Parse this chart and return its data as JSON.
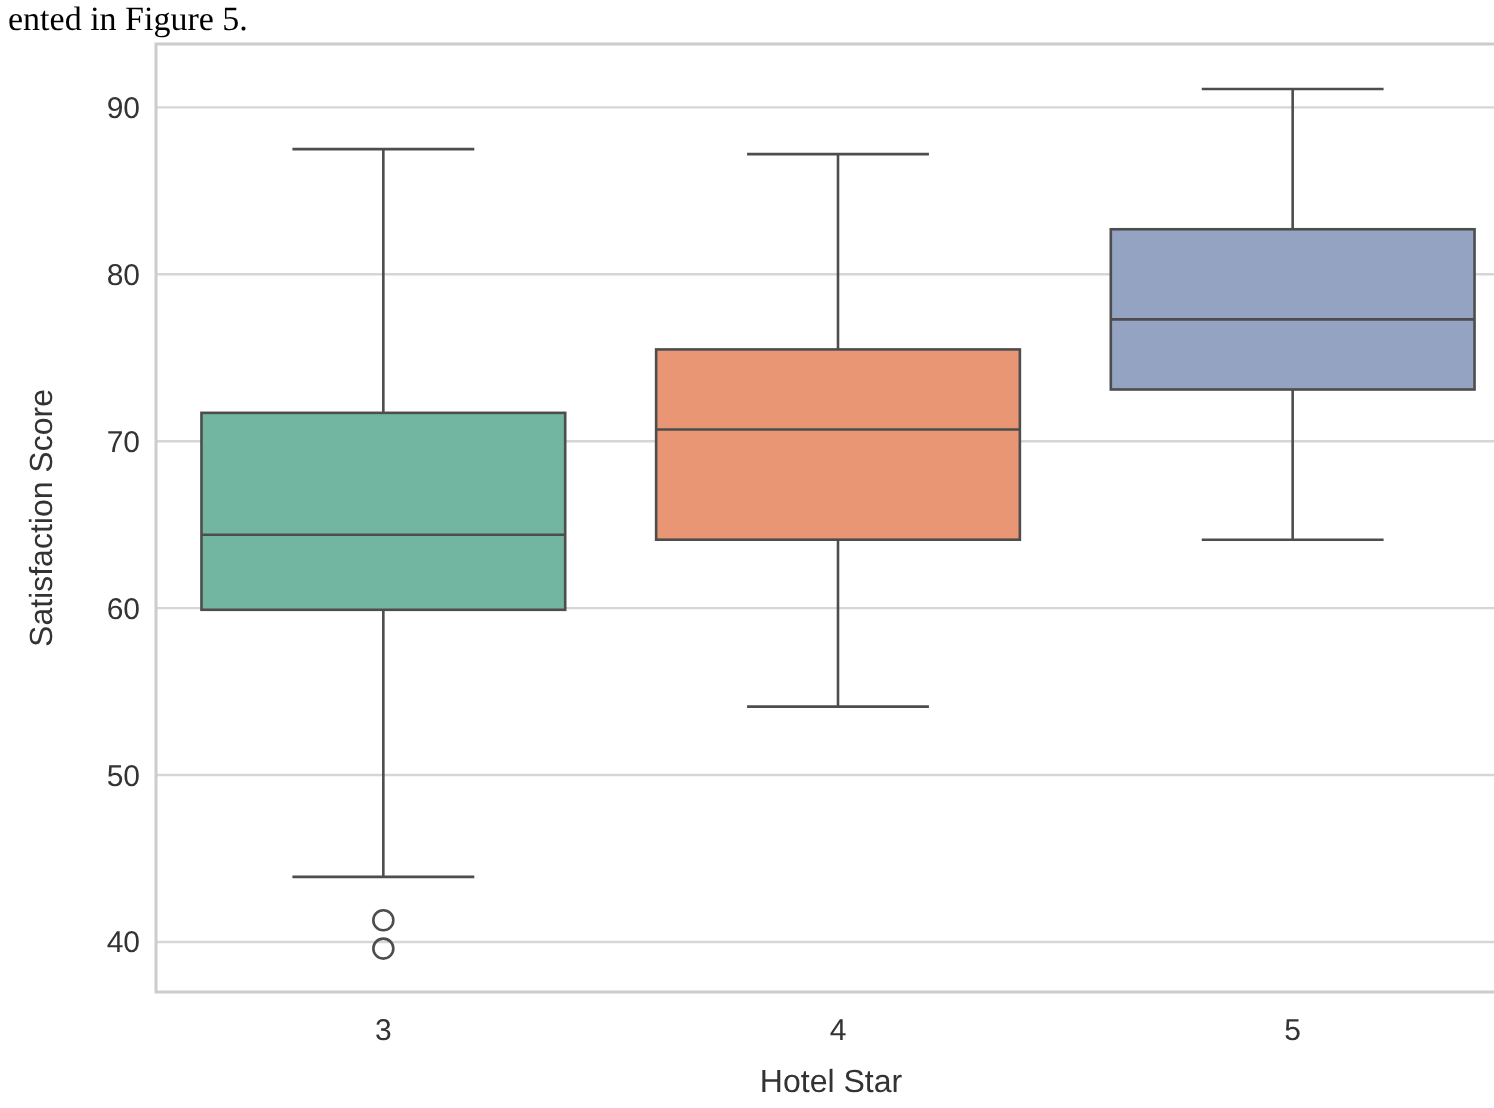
{
  "chart_data": {
    "type": "box",
    "xlabel": "Hotel Star",
    "ylabel": "Satisfaction Score",
    "annotations": [
      "ented in Figure 5."
    ],
    "categories": [
      "3",
      "4",
      "5"
    ],
    "colors": [
      "#72b6a1",
      "#e99675",
      "#95a3c3"
    ],
    "boxes": [
      {
        "low": 43.9,
        "q1": 59.9,
        "median": 64.4,
        "q3": 71.7,
        "high": 87.5,
        "outliers": [
          41.3,
          39.6
        ]
      },
      {
        "low": 54.1,
        "q1": 64.1,
        "median": 70.7,
        "q3": 75.5,
        "high": 87.2
      },
      {
        "low": 64.1,
        "q1": 73.1,
        "median": 77.3,
        "q3": 82.7,
        "high": 91.1
      }
    ],
    "ylim": [
      37.0,
      93.8
    ],
    "yticks": [
      40,
      50,
      60,
      70,
      80,
      90
    ],
    "grid": "y"
  }
}
